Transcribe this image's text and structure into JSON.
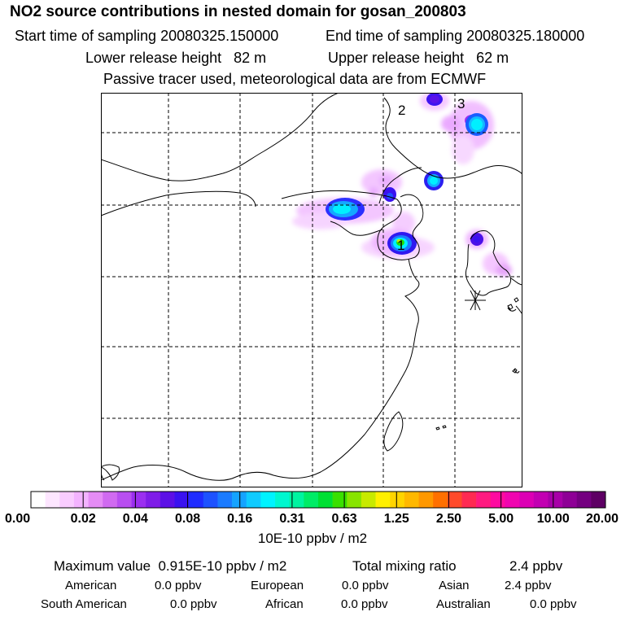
{
  "title": "NO2 source contributions in nested domain for gosan_200803",
  "start_label": "Start time of sampling 20080325.150000",
  "end_label": "End time of sampling 20080325.180000",
  "lower_release": "Lower release height   82 m",
  "upper_release": "Upper release height   62 m",
  "tracer_note": "Passive tracer used, meteorological data are from ECMWF",
  "map": {
    "labels": [
      "1",
      "2",
      "3"
    ]
  },
  "colorbar": {
    "ticks": [
      "0.00",
      "0.02",
      "0.04",
      "0.08",
      "0.16",
      "0.31",
      "0.63",
      "1.25",
      "2.50",
      "5.00",
      "10.00",
      "20.00"
    ],
    "units": "10E-10 ppbv / m2",
    "colors": [
      "#ffffff",
      "#fde6ff",
      "#f9ccff",
      "#f3b3ff",
      "#e58cf5",
      "#d06af0",
      "#b84ef0",
      "#9b2ff0",
      "#7f1de8",
      "#5c10e6",
      "#3a12f0",
      "#1f2cff",
      "#1d52ff",
      "#1a7bff",
      "#15a3ff",
      "#10cbff",
      "#00f3ff",
      "#00f7cf",
      "#00f4a0",
      "#00ec66",
      "#00e033",
      "#3ae000",
      "#88e400",
      "#c8ea00",
      "#fff000",
      "#ffd400",
      "#ffb800",
      "#ff9800",
      "#ff7000",
      "#ff4a2a",
      "#ff2a52",
      "#ff1a80",
      "#ff0aa0",
      "#f005b0",
      "#dc00b4",
      "#c200b2",
      "#a800a8",
      "#8e0096",
      "#740080",
      "#5e0064"
    ]
  },
  "max_value": "Maximum value  0.915E-10 ppbv / m2",
  "total_label": "Total mixing ratio",
  "total_value": "2.4 ppbv",
  "regions": [
    {
      "name": "American",
      "value": "0.0 ppbv"
    },
    {
      "name": "European",
      "value": "0.0 ppbv"
    },
    {
      "name": "Asian",
      "value": "2.4 ppbv"
    },
    {
      "name": "South American",
      "value": "0.0 ppbv"
    },
    {
      "name": "African",
      "value": "0.0 ppbv"
    },
    {
      "name": "Australian",
      "value": "0.0 ppbv"
    }
  ]
}
